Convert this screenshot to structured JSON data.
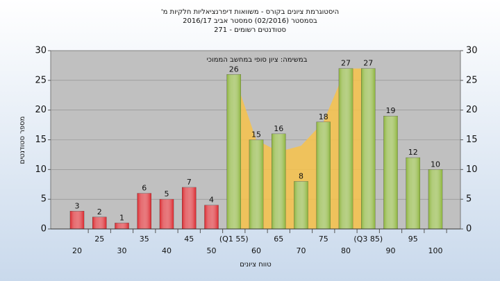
{
  "chart_data": {
    "type": "bar",
    "title": [
      "היסטוגרמת ציונים בקורס - משוואות דיפרנציאליות חלקיות מ'",
      "בסמסטר (02/2016) סמסטר אביב 2016/17",
      "סטודנטים רשומים - 271"
    ],
    "annotation": "במשימה: ציון סופי במחשב הממוכי",
    "x_label": "טווח ציונים",
    "y_label": "מספר סטודנטים",
    "categories": [
      "20",
      "25",
      "30",
      "35",
      "40",
      "45",
      "50",
      "(Q1 55)",
      "60",
      "65",
      "70",
      "75",
      "80",
      "(Q3 85)",
      "90",
      "95",
      "100"
    ],
    "values": [
      3,
      2,
      1,
      6,
      5,
      7,
      4,
      26,
      15,
      16,
      8,
      18,
      27,
      27,
      19,
      12,
      10
    ],
    "colors": [
      "#d9262c",
      "#d9262c",
      "#d9262c",
      "#d9262c",
      "#d9262c",
      "#d9262c",
      "#d9262c",
      "#8bb33a",
      "#8bb33a",
      "#8bb33a",
      "#8bb33a",
      "#8bb33a",
      "#8bb33a",
      "#8bb33a",
      "#8bb33a",
      "#8bb33a",
      "#8bb33a"
    ],
    "area_values": [
      null,
      null,
      null,
      null,
      null,
      null,
      null,
      26,
      15,
      13,
      14,
      18,
      27,
      27,
      null,
      null,
      null
    ],
    "area_color": "#f7c24a",
    "ylim": [
      0,
      30
    ],
    "yticks": [
      0,
      5,
      10,
      15,
      20,
      25,
      30
    ],
    "y2lim": [
      0,
      30
    ],
    "y2ticks": [
      0,
      5,
      10,
      15,
      20,
      25,
      30
    ],
    "grid": true
  }
}
